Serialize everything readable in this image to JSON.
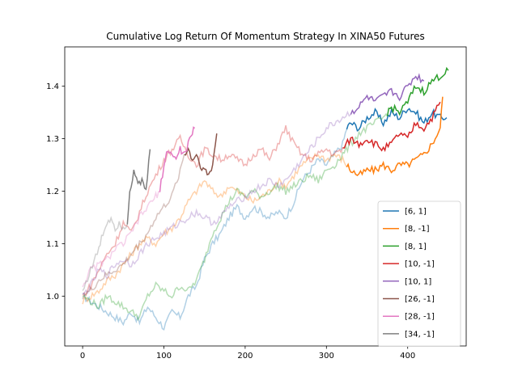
{
  "chart_data": {
    "type": "line",
    "title": "Cumulative Log Return Of Momentum Strategy In XINA50 Futures",
    "xlabel": "",
    "ylabel": "",
    "xlim": [
      -22,
      472
    ],
    "ylim": [
      0.905,
      1.475
    ],
    "xticks": [
      0,
      100,
      200,
      300,
      400
    ],
    "yticks": [
      1.0,
      1.1,
      1.2,
      1.3,
      1.4
    ],
    "grid": false,
    "legend_position": "lower-right",
    "series": [
      {
        "name": "[6, 1]",
        "color": "#1f77b4",
        "alpha_segment_end": 325,
        "points": [
          [
            0,
            1.0
          ],
          [
            10,
            0.99
          ],
          [
            20,
            0.98
          ],
          [
            30,
            0.97
          ],
          [
            40,
            0.96
          ],
          [
            50,
            0.95
          ],
          [
            60,
            0.97
          ],
          [
            70,
            0.95
          ],
          [
            80,
            0.98
          ],
          [
            90,
            0.96
          ],
          [
            100,
            0.94
          ],
          [
            110,
            0.97
          ],
          [
            120,
            0.96
          ],
          [
            130,
            1.0
          ],
          [
            140,
            1.02
          ],
          [
            150,
            1.07
          ],
          [
            160,
            1.1
          ],
          [
            170,
            1.12
          ],
          [
            180,
            1.15
          ],
          [
            190,
            1.17
          ],
          [
            200,
            1.15
          ],
          [
            210,
            1.17
          ],
          [
            220,
            1.16
          ],
          [
            230,
            1.15
          ],
          [
            240,
            1.16
          ],
          [
            250,
            1.15
          ],
          [
            260,
            1.18
          ],
          [
            270,
            1.22
          ],
          [
            280,
            1.24
          ],
          [
            290,
            1.26
          ],
          [
            300,
            1.25
          ],
          [
            310,
            1.27
          ],
          [
            320,
            1.29
          ],
          [
            325,
            1.32
          ],
          [
            330,
            1.33
          ],
          [
            340,
            1.32
          ],
          [
            350,
            1.34
          ],
          [
            360,
            1.35
          ],
          [
            370,
            1.33
          ],
          [
            380,
            1.35
          ],
          [
            390,
            1.34
          ],
          [
            400,
            1.36
          ],
          [
            410,
            1.35
          ],
          [
            420,
            1.33
          ],
          [
            430,
            1.35
          ],
          [
            440,
            1.34
          ],
          [
            448,
            1.34
          ]
        ]
      },
      {
        "name": "[8, -1]",
        "color": "#ff7f0e",
        "alpha_segment_end": 325,
        "points": [
          [
            0,
            0.99
          ],
          [
            10,
            1.0
          ],
          [
            20,
            1.01
          ],
          [
            30,
            1.03
          ],
          [
            40,
            1.04
          ],
          [
            50,
            1.06
          ],
          [
            60,
            1.08
          ],
          [
            70,
            1.1
          ],
          [
            80,
            1.11
          ],
          [
            90,
            1.1
          ],
          [
            100,
            1.12
          ],
          [
            110,
            1.13
          ],
          [
            120,
            1.15
          ],
          [
            130,
            1.18
          ],
          [
            140,
            1.2
          ],
          [
            150,
            1.22
          ],
          [
            160,
            1.2
          ],
          [
            170,
            1.19
          ],
          [
            180,
            1.21
          ],
          [
            190,
            1.2
          ],
          [
            200,
            1.19
          ],
          [
            210,
            1.18
          ],
          [
            220,
            1.19
          ],
          [
            230,
            1.2
          ],
          [
            240,
            1.22
          ],
          [
            250,
            1.21
          ],
          [
            260,
            1.23
          ],
          [
            270,
            1.25
          ],
          [
            280,
            1.26
          ],
          [
            290,
            1.27
          ],
          [
            300,
            1.26
          ],
          [
            310,
            1.27
          ],
          [
            320,
            1.26
          ],
          [
            325,
            1.25
          ],
          [
            330,
            1.24
          ],
          [
            340,
            1.23
          ],
          [
            350,
            1.24
          ],
          [
            360,
            1.24
          ],
          [
            370,
            1.25
          ],
          [
            380,
            1.24
          ],
          [
            390,
            1.25
          ],
          [
            400,
            1.25
          ],
          [
            410,
            1.26
          ],
          [
            420,
            1.27
          ],
          [
            430,
            1.29
          ],
          [
            440,
            1.32
          ],
          [
            443,
            1.38
          ]
        ]
      },
      {
        "name": "[8, 1]",
        "color": "#2ca02c",
        "alpha_segment_end": 375,
        "points": [
          [
            0,
            1.0
          ],
          [
            10,
            0.99
          ],
          [
            20,
            0.98
          ],
          [
            30,
            1.0
          ],
          [
            40,
            0.99
          ],
          [
            50,
            0.98
          ],
          [
            60,
            0.97
          ],
          [
            70,
            0.96
          ],
          [
            80,
            1.0
          ],
          [
            90,
            1.02
          ],
          [
            100,
            1.01
          ],
          [
            110,
            1.0
          ],
          [
            120,
            1.02
          ],
          [
            130,
            1.01
          ],
          [
            140,
            1.03
          ],
          [
            150,
            1.07
          ],
          [
            160,
            1.12
          ],
          [
            170,
            1.15
          ],
          [
            180,
            1.18
          ],
          [
            190,
            1.2
          ],
          [
            200,
            1.19
          ],
          [
            210,
            1.2
          ],
          [
            220,
            1.19
          ],
          [
            230,
            1.2
          ],
          [
            240,
            1.21
          ],
          [
            250,
            1.2
          ],
          [
            260,
            1.21
          ],
          [
            270,
            1.22
          ],
          [
            280,
            1.23
          ],
          [
            290,
            1.22
          ],
          [
            300,
            1.24
          ],
          [
            310,
            1.25
          ],
          [
            320,
            1.27
          ],
          [
            330,
            1.29
          ],
          [
            340,
            1.31
          ],
          [
            350,
            1.32
          ],
          [
            360,
            1.33
          ],
          [
            370,
            1.34
          ],
          [
            375,
            1.35
          ],
          [
            380,
            1.36
          ],
          [
            390,
            1.35
          ],
          [
            400,
            1.37
          ],
          [
            410,
            1.4
          ],
          [
            420,
            1.39
          ],
          [
            430,
            1.41
          ],
          [
            440,
            1.42
          ],
          [
            450,
            1.43
          ]
        ]
      },
      {
        "name": "[10, -1]",
        "color": "#d62728",
        "alpha_segment_end": 320,
        "points": [
          [
            0,
            1.0
          ],
          [
            10,
            1.02
          ],
          [
            20,
            1.05
          ],
          [
            30,
            1.08
          ],
          [
            40,
            1.1
          ],
          [
            50,
            1.14
          ],
          [
            60,
            1.12
          ],
          [
            70,
            1.16
          ],
          [
            80,
            1.2
          ],
          [
            90,
            1.23
          ],
          [
            100,
            1.26
          ],
          [
            110,
            1.28
          ],
          [
            120,
            1.3
          ],
          [
            130,
            1.27
          ],
          [
            140,
            1.25
          ],
          [
            150,
            1.28
          ],
          [
            160,
            1.27
          ],
          [
            170,
            1.26
          ],
          [
            180,
            1.27
          ],
          [
            190,
            1.26
          ],
          [
            200,
            1.25
          ],
          [
            210,
            1.27
          ],
          [
            220,
            1.28
          ],
          [
            230,
            1.26
          ],
          [
            240,
            1.29
          ],
          [
            250,
            1.32
          ],
          [
            260,
            1.29
          ],
          [
            270,
            1.27
          ],
          [
            280,
            1.26
          ],
          [
            290,
            1.27
          ],
          [
            300,
            1.28
          ],
          [
            310,
            1.27
          ],
          [
            320,
            1.28
          ],
          [
            330,
            1.3
          ],
          [
            340,
            1.29
          ],
          [
            350,
            1.3
          ],
          [
            360,
            1.29
          ],
          [
            370,
            1.28
          ],
          [
            380,
            1.29
          ],
          [
            390,
            1.31
          ],
          [
            400,
            1.3
          ],
          [
            410,
            1.33
          ],
          [
            420,
            1.32
          ],
          [
            430,
            1.34
          ],
          [
            440,
            1.37
          ]
        ]
      },
      {
        "name": "[10, 1]",
        "color": "#9467bd",
        "alpha_segment_end": 330,
        "points": [
          [
            0,
            1.0
          ],
          [
            10,
            1.02
          ],
          [
            20,
            1.05
          ],
          [
            30,
            1.04
          ],
          [
            40,
            1.06
          ],
          [
            50,
            1.07
          ],
          [
            60,
            1.06
          ],
          [
            70,
            1.08
          ],
          [
            80,
            1.1
          ],
          [
            90,
            1.11
          ],
          [
            100,
            1.12
          ],
          [
            110,
            1.13
          ],
          [
            120,
            1.14
          ],
          [
            130,
            1.15
          ],
          [
            140,
            1.16
          ],
          [
            150,
            1.15
          ],
          [
            160,
            1.14
          ],
          [
            170,
            1.15
          ],
          [
            180,
            1.17
          ],
          [
            190,
            1.18
          ],
          [
            200,
            1.19
          ],
          [
            210,
            1.2
          ],
          [
            220,
            1.21
          ],
          [
            230,
            1.22
          ],
          [
            240,
            1.21
          ],
          [
            250,
            1.22
          ],
          [
            260,
            1.24
          ],
          [
            270,
            1.26
          ],
          [
            280,
            1.28
          ],
          [
            290,
            1.3
          ],
          [
            300,
            1.32
          ],
          [
            310,
            1.33
          ],
          [
            320,
            1.34
          ],
          [
            330,
            1.35
          ],
          [
            340,
            1.36
          ],
          [
            350,
            1.38
          ],
          [
            360,
            1.37
          ],
          [
            370,
            1.38
          ],
          [
            380,
            1.39
          ],
          [
            390,
            1.38
          ],
          [
            400,
            1.4
          ],
          [
            410,
            1.42
          ],
          [
            420,
            1.41
          ]
        ]
      },
      {
        "name": "[26, -1]",
        "color": "#8c564b",
        "alpha_segment_end": 125,
        "points": [
          [
            0,
            1.0
          ],
          [
            10,
            1.01
          ],
          [
            20,
            1.03
          ],
          [
            30,
            1.04
          ],
          [
            40,
            1.05
          ],
          [
            50,
            1.06
          ],
          [
            60,
            1.08
          ],
          [
            70,
            1.1
          ],
          [
            80,
            1.12
          ],
          [
            90,
            1.15
          ],
          [
            100,
            1.17
          ],
          [
            110,
            1.19
          ],
          [
            120,
            1.24
          ],
          [
            125,
            1.27
          ],
          [
            130,
            1.28
          ],
          [
            135,
            1.26
          ],
          [
            140,
            1.27
          ],
          [
            145,
            1.25
          ],
          [
            150,
            1.24
          ],
          [
            155,
            1.23
          ],
          [
            160,
            1.25
          ],
          [
            165,
            1.31
          ]
        ]
      },
      {
        "name": "[28, -1]",
        "color": "#e377c2",
        "alpha_segment_end": 95,
        "points": [
          [
            0,
            1.02
          ],
          [
            10,
            1.05
          ],
          [
            20,
            1.06
          ],
          [
            30,
            1.07
          ],
          [
            40,
            1.09
          ],
          [
            50,
            1.1
          ],
          [
            60,
            1.12
          ],
          [
            70,
            1.15
          ],
          [
            80,
            1.17
          ],
          [
            90,
            1.19
          ],
          [
            95,
            1.2
          ],
          [
            100,
            1.25
          ],
          [
            105,
            1.28
          ],
          [
            110,
            1.27
          ],
          [
            115,
            1.26
          ],
          [
            120,
            1.28
          ],
          [
            125,
            1.27
          ],
          [
            130,
            1.29
          ],
          [
            135,
            1.31
          ],
          [
            138,
            1.32
          ]
        ]
      },
      {
        "name": "[34, -1]",
        "color": "#7f7f7f",
        "alpha_segment_end": 55,
        "points": [
          [
            0,
            1.01
          ],
          [
            10,
            1.05
          ],
          [
            20,
            1.09
          ],
          [
            25,
            1.12
          ],
          [
            30,
            1.14
          ],
          [
            35,
            1.15
          ],
          [
            40,
            1.13
          ],
          [
            45,
            1.14
          ],
          [
            50,
            1.13
          ],
          [
            55,
            1.14
          ],
          [
            58,
            1.2
          ],
          [
            63,
            1.24
          ],
          [
            68,
            1.21
          ],
          [
            73,
            1.22
          ],
          [
            78,
            1.2
          ],
          [
            83,
            1.28
          ]
        ]
      }
    ]
  }
}
